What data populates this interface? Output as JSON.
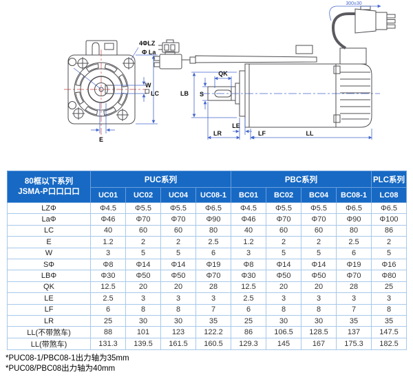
{
  "drawing": {
    "labels": {
      "bolt_holes": "4ΦLZ",
      "bolt_circle": "Φ La",
      "keyway_width": "W",
      "frame_size": "LC",
      "keyway_offset": "E",
      "key_length": "QK",
      "shaft_dia": "S",
      "pilot_dia": "LB",
      "pilot_depth": "LE",
      "flange_thickness": "LF",
      "shaft_length": "LR",
      "body_length": "LL",
      "cable_length": "300±30"
    }
  },
  "table": {
    "corner_header": {
      "line1": "80框以下系列",
      "line2": "JSMA-P口口口口"
    },
    "groups": [
      {
        "label": "PUC系列",
        "span": 4
      },
      {
        "label": "PBC系列",
        "span": 4
      },
      {
        "label": "PLC系列",
        "span": 1
      }
    ],
    "models": [
      "UC01",
      "UC02",
      "UC04",
      "UC08-1",
      "BC01",
      "BC02",
      "BC04",
      "BC08-1",
      "LC08"
    ],
    "rows": [
      {
        "label": "LZΦ",
        "values": [
          "Φ4.5",
          "Φ5.5",
          "Φ5.5",
          "Φ6.5",
          "Φ4.5",
          "Φ5.5",
          "Φ5.5",
          "Φ6.5",
          "Φ6.5"
        ]
      },
      {
        "label": "LaΦ",
        "values": [
          "Φ46",
          "Φ70",
          "Φ70",
          "Φ90",
          "Φ46",
          "Φ70",
          "Φ70",
          "Φ90",
          "Φ100"
        ]
      },
      {
        "label": "LC",
        "values": [
          "40",
          "60",
          "60",
          "80",
          "40",
          "60",
          "60",
          "80",
          "86"
        ]
      },
      {
        "label": "E",
        "values": [
          "1.2",
          "2",
          "2",
          "2.5",
          "1.2",
          "2",
          "2",
          "2.5",
          "2"
        ]
      },
      {
        "label": "W",
        "values": [
          "3",
          "5",
          "5",
          "6",
          "3",
          "5",
          "5",
          "6",
          "5"
        ]
      },
      {
        "label": "SΦ",
        "values": [
          "Φ8",
          "Φ14",
          "Φ14",
          "Φ19",
          "Φ8",
          "Φ14",
          "Φ14",
          "Φ19",
          "Φ16"
        ]
      },
      {
        "label": "LBΦ",
        "values": [
          "Φ30",
          "Φ50",
          "Φ50",
          "Φ70",
          "Φ30",
          "Φ50",
          "Φ50",
          "Φ70",
          "Φ80"
        ]
      },
      {
        "label": "QK",
        "values": [
          "12.5",
          "20",
          "20",
          "28",
          "12.5",
          "20",
          "20",
          "28",
          "25"
        ]
      },
      {
        "label": "LE",
        "values": [
          "2.5",
          "3",
          "3",
          "3",
          "2.5",
          "3",
          "3",
          "3",
          "3"
        ]
      },
      {
        "label": "LF",
        "values": [
          "6",
          "8",
          "8",
          "7",
          "6",
          "8",
          "8",
          "7",
          "8"
        ]
      },
      {
        "label": "LR",
        "values": [
          "25",
          "30",
          "30",
          "35",
          "25",
          "30",
          "30",
          "35",
          "35"
        ]
      },
      {
        "label": "LL(不带煞车)",
        "values": [
          "88",
          "101",
          "123",
          "122.2",
          "86",
          "106.5",
          "128.5",
          "137",
          "147.5"
        ]
      },
      {
        "label": "LL(带煞车)",
        "values": [
          "131.3",
          "139.5",
          "161.5",
          "160.5",
          "129.3",
          "145",
          "167",
          "175.3",
          "182.5"
        ]
      }
    ]
  },
  "footnotes": [
    "*PUC08-1/PBC08-1出力轴为35mm",
    "*PUC08/PBC08出力轴为40mm"
  ],
  "colors": {
    "header_bg": "#1769c4",
    "header_text": "#ffffff",
    "body_border": "#a6c8ea",
    "dimension_line": "#4466cc",
    "centerline": "#d04545",
    "outline": "#4d4d52"
  }
}
